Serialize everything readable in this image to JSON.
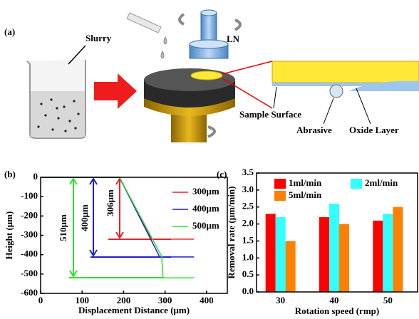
{
  "panel_a": {
    "label": "(a)",
    "slurry": "Slurry",
    "ln": "LN",
    "sample_surface": "Sample Surface",
    "abrasive": "Abrasive",
    "oxide_layer": "Oxide Layer"
  },
  "chart_data": [
    {
      "type": "line",
      "panel_label": "(b)",
      "xlabel": "Displacement Distance (μm)",
      "ylabel": "Height (μm)",
      "xlim": [
        0,
        450
      ],
      "xticks": [
        0,
        100,
        200,
        300,
        400
      ],
      "ylim": [
        -600,
        0
      ],
      "yticks": [
        -600,
        -500,
        -400,
        -300,
        -200,
        -100,
        0
      ],
      "annotations": [
        "510μm",
        "400μm",
        "306μm"
      ],
      "series": [
        {
          "name": "300μm",
          "color": "#e8202a",
          "x": [
            5,
            190,
            268,
            370
          ],
          "values": [
            0,
            0,
            -320,
            -320
          ]
        },
        {
          "name": "400μm",
          "color": "#1f1fc8",
          "x": [
            5,
            190,
            287,
            370
          ],
          "values": [
            0,
            0,
            -412,
            -412
          ]
        },
        {
          "name": "500μm",
          "color": "#2fe02f",
          "x": [
            5,
            190,
            292,
            295,
            370
          ],
          "values": [
            0,
            0,
            -410,
            -520,
            -520
          ]
        }
      ]
    },
    {
      "type": "bar",
      "panel_label": "(c)",
      "xlabel": "Rotation speed (rmp)",
      "ylabel": "Removal rate (μm/min)",
      "categories": [
        "30",
        "40",
        "50"
      ],
      "ylim": [
        0,
        3.5
      ],
      "yticks": [
        {
          "value": 0,
          "label": "0.0"
        },
        0.5,
        {
          "value": 1,
          "label": "1.0"
        },
        1.5,
        {
          "value": 2,
          "label": "2.0"
        },
        2.5,
        {
          "value": 3,
          "label": "3.0"
        },
        3.5
      ],
      "series": [
        {
          "name": "1ml/min",
          "color": "#ff0000",
          "values": [
            2.3,
            2.2,
            2.1
          ]
        },
        {
          "name": "2ml/min",
          "color": "#33ffff",
          "values": [
            2.2,
            2.6,
            2.3
          ]
        },
        {
          "name": "5ml/min",
          "color": "#ff8000",
          "values": [
            1.5,
            2.0,
            2.5
          ]
        }
      ]
    }
  ]
}
